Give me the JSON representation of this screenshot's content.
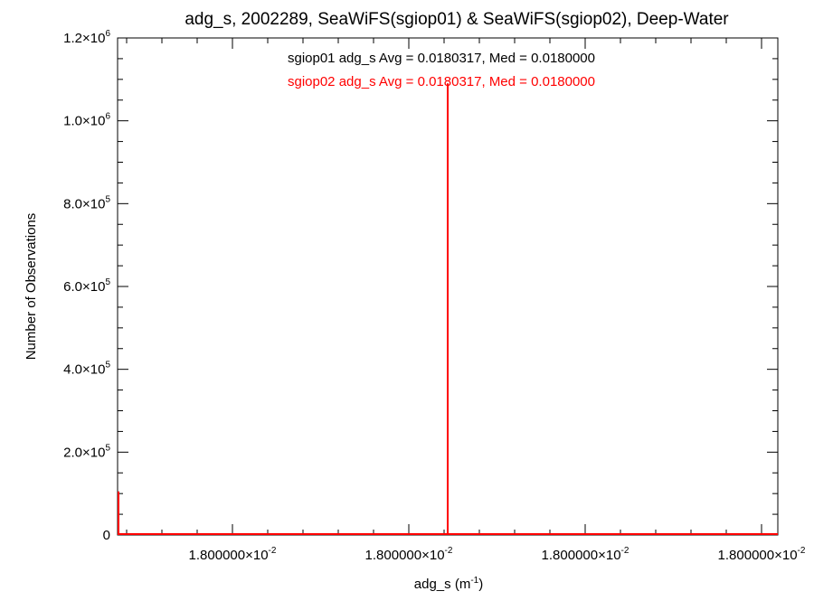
{
  "chart_data": {
    "type": "line",
    "title": "adg_s, 2002289, SeaWiFS(sgiop01) & SeaWiFS(sgiop02), Deep-Water",
    "xlabel": {
      "base": "adg_s (m",
      "sup": "-1",
      "tail": ")"
    },
    "ylabel": "Number of Observations",
    "xlim": [
      0.017999,
      0.018001
    ],
    "ylim": [
      0,
      1200000
    ],
    "x_tick_labels": [
      {
        "mantissa": "1.800000×10",
        "exp": "-2"
      },
      {
        "mantissa": "1.800000×10",
        "exp": "-2"
      },
      {
        "mantissa": "1.800000×10",
        "exp": "-2"
      },
      {
        "mantissa": "1.800000×10",
        "exp": "-2"
      }
    ],
    "y_tick_labels": [
      {
        "value": 0,
        "mantissa": "0",
        "exp": ""
      },
      {
        "value": 200000,
        "mantissa": "2.0×10",
        "exp": "5"
      },
      {
        "value": 400000,
        "mantissa": "4.0×10",
        "exp": "5"
      },
      {
        "value": 600000,
        "mantissa": "6.0×10",
        "exp": "5"
      },
      {
        "value": 800000,
        "mantissa": "8.0×10",
        "exp": "5"
      },
      {
        "value": 1000000,
        "mantissa": "1.0×10",
        "exp": "6"
      },
      {
        "value": 1200000,
        "mantissa": "1.2×10",
        "exp": "6"
      }
    ],
    "grid": false,
    "series": [
      {
        "name": "sgiop01",
        "color": "#000000",
        "stats": "sgiop01 adg_s Avg = 0.0180317, Med = 0.0180000",
        "x": [
          0.017999,
          0.017999,
          0.018,
          0.018,
          0.018,
          0.018001
        ],
        "y": [
          105000,
          0,
          0,
          1090000,
          0,
          0
        ]
      },
      {
        "name": "sgiop02",
        "color": "#ff0000",
        "stats": "sgiop02 adg_s Avg = 0.0180317, Med = 0.0180000",
        "x": [
          0.017999,
          0.017999,
          0.018,
          0.018,
          0.018,
          0.018001
        ],
        "y": [
          105000,
          0,
          0,
          1090000,
          0,
          0
        ]
      }
    ]
  }
}
